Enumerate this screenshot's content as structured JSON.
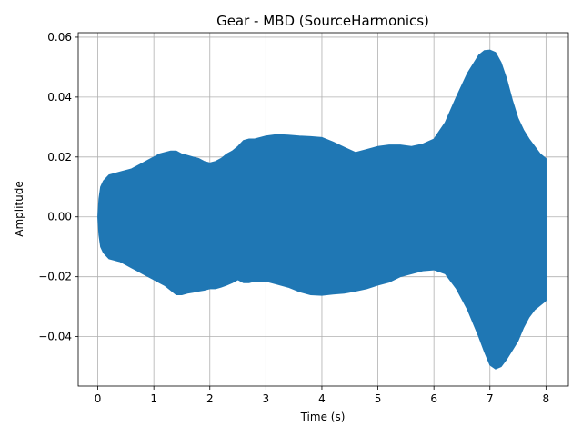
{
  "chart_data": {
    "type": "area",
    "title": "Gear - MBD (SourceHarmonics)",
    "xlabel": "Time (s)",
    "ylabel": "Amplitude",
    "xlim": [
      -0.35,
      8.4
    ],
    "ylim": [
      -0.0565,
      0.0615
    ],
    "xticks": [
      0,
      1,
      2,
      3,
      4,
      5,
      6,
      7,
      8
    ],
    "xtick_labels": [
      "0",
      "1",
      "2",
      "3",
      "4",
      "5",
      "6",
      "7",
      "8"
    ],
    "yticks": [
      -0.04,
      -0.02,
      0.0,
      0.02,
      0.04,
      0.06
    ],
    "ytick_labels": [
      "−0.04",
      "−0.02",
      "0.00",
      "0.02",
      "0.04",
      "0.06"
    ],
    "grid": true,
    "color": "#1f77b4",
    "series": [
      {
        "envelope_time": [
          0.0,
          0.02,
          0.05,
          0.1,
          0.15,
          0.2,
          0.3,
          0.4,
          0.5,
          0.6,
          0.7,
          0.8,
          0.9,
          1.0,
          1.1,
          1.2,
          1.3,
          1.4,
          1.5,
          1.6,
          1.7,
          1.8,
          1.9,
          2.0,
          2.1,
          2.2,
          2.3,
          2.4,
          2.5,
          2.6,
          2.7,
          2.8,
          3.0,
          3.2,
          3.4,
          3.6,
          3.8,
          4.0,
          4.2,
          4.4,
          4.6,
          4.8,
          5.0,
          5.2,
          5.4,
          5.6,
          5.8,
          6.0,
          6.2,
          6.4,
          6.6,
          6.8,
          6.9,
          7.0,
          7.1,
          7.2,
          7.3,
          7.4,
          7.5,
          7.6,
          7.7,
          7.8,
          7.9,
          8.0
        ],
        "upper": [
          0.0,
          0.006,
          0.01,
          0.012,
          0.013,
          0.014,
          0.0145,
          0.015,
          0.0155,
          0.016,
          0.017,
          0.018,
          0.019,
          0.02,
          0.021,
          0.0215,
          0.022,
          0.022,
          0.021,
          0.0205,
          0.02,
          0.0195,
          0.0185,
          0.018,
          0.0185,
          0.0195,
          0.021,
          0.022,
          0.0235,
          0.0255,
          0.026,
          0.026,
          0.027,
          0.0275,
          0.0273,
          0.027,
          0.0268,
          0.0265,
          0.025,
          0.0232,
          0.0215,
          0.0225,
          0.0235,
          0.024,
          0.024,
          0.0235,
          0.0243,
          0.026,
          0.0315,
          0.04,
          0.048,
          0.054,
          0.0555,
          0.0557,
          0.0549,
          0.0515,
          0.046,
          0.039,
          0.033,
          0.029,
          0.026,
          0.0235,
          0.021,
          0.0195
        ],
        "lower": [
          0.0,
          -0.006,
          -0.01,
          -0.012,
          -0.013,
          -0.014,
          -0.0145,
          -0.015,
          -0.016,
          -0.017,
          -0.018,
          -0.019,
          -0.02,
          -0.021,
          -0.022,
          -0.023,
          -0.0245,
          -0.026,
          -0.026,
          -0.0255,
          -0.0252,
          -0.0248,
          -0.0245,
          -0.024,
          -0.024,
          -0.0235,
          -0.0228,
          -0.022,
          -0.021,
          -0.022,
          -0.022,
          -0.0215,
          -0.0215,
          -0.0225,
          -0.0235,
          -0.025,
          -0.026,
          -0.0262,
          -0.0258,
          -0.0255,
          -0.0248,
          -0.024,
          -0.0228,
          -0.0218,
          -0.02,
          -0.019,
          -0.018,
          -0.0177,
          -0.019,
          -0.024,
          -0.031,
          -0.04,
          -0.045,
          -0.0495,
          -0.0508,
          -0.05,
          -0.0475,
          -0.0445,
          -0.0415,
          -0.037,
          -0.0335,
          -0.031,
          -0.0295,
          -0.028
        ]
      }
    ]
  }
}
